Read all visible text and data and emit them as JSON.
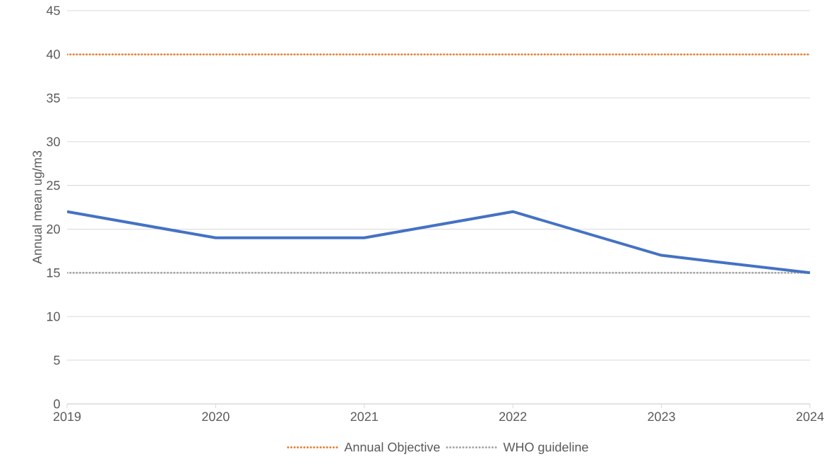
{
  "chart_data": {
    "type": "line",
    "ylabel": "Annual mean ug/m3",
    "x": [
      2019,
      2020,
      2021,
      2022,
      2023,
      2024
    ],
    "series": [
      {
        "color": "#4472c4",
        "values": [
          22,
          19,
          19,
          22,
          17,
          15
        ]
      }
    ],
    "xlim": [
      2019,
      2024
    ],
    "xticks": [
      2019,
      2020,
      2021,
      2022,
      2023,
      2024
    ],
    "ylim": [
      0,
      45
    ],
    "yticks": [
      0,
      5,
      10,
      15,
      20,
      25,
      30,
      35,
      40,
      45
    ],
    "ref_lines": [
      {
        "axis": "y",
        "value": 40,
        "label": "Annual Objective",
        "color": "#ed7d31",
        "line_style": "dotted"
      },
      {
        "axis": "y",
        "value": 15,
        "label": "WHO guideline",
        "color": "#a5a5a5",
        "line_style": "dotted"
      }
    ],
    "grid": "y",
    "legend": "bottom",
    "marker": "none",
    "line_style": "solid"
  }
}
